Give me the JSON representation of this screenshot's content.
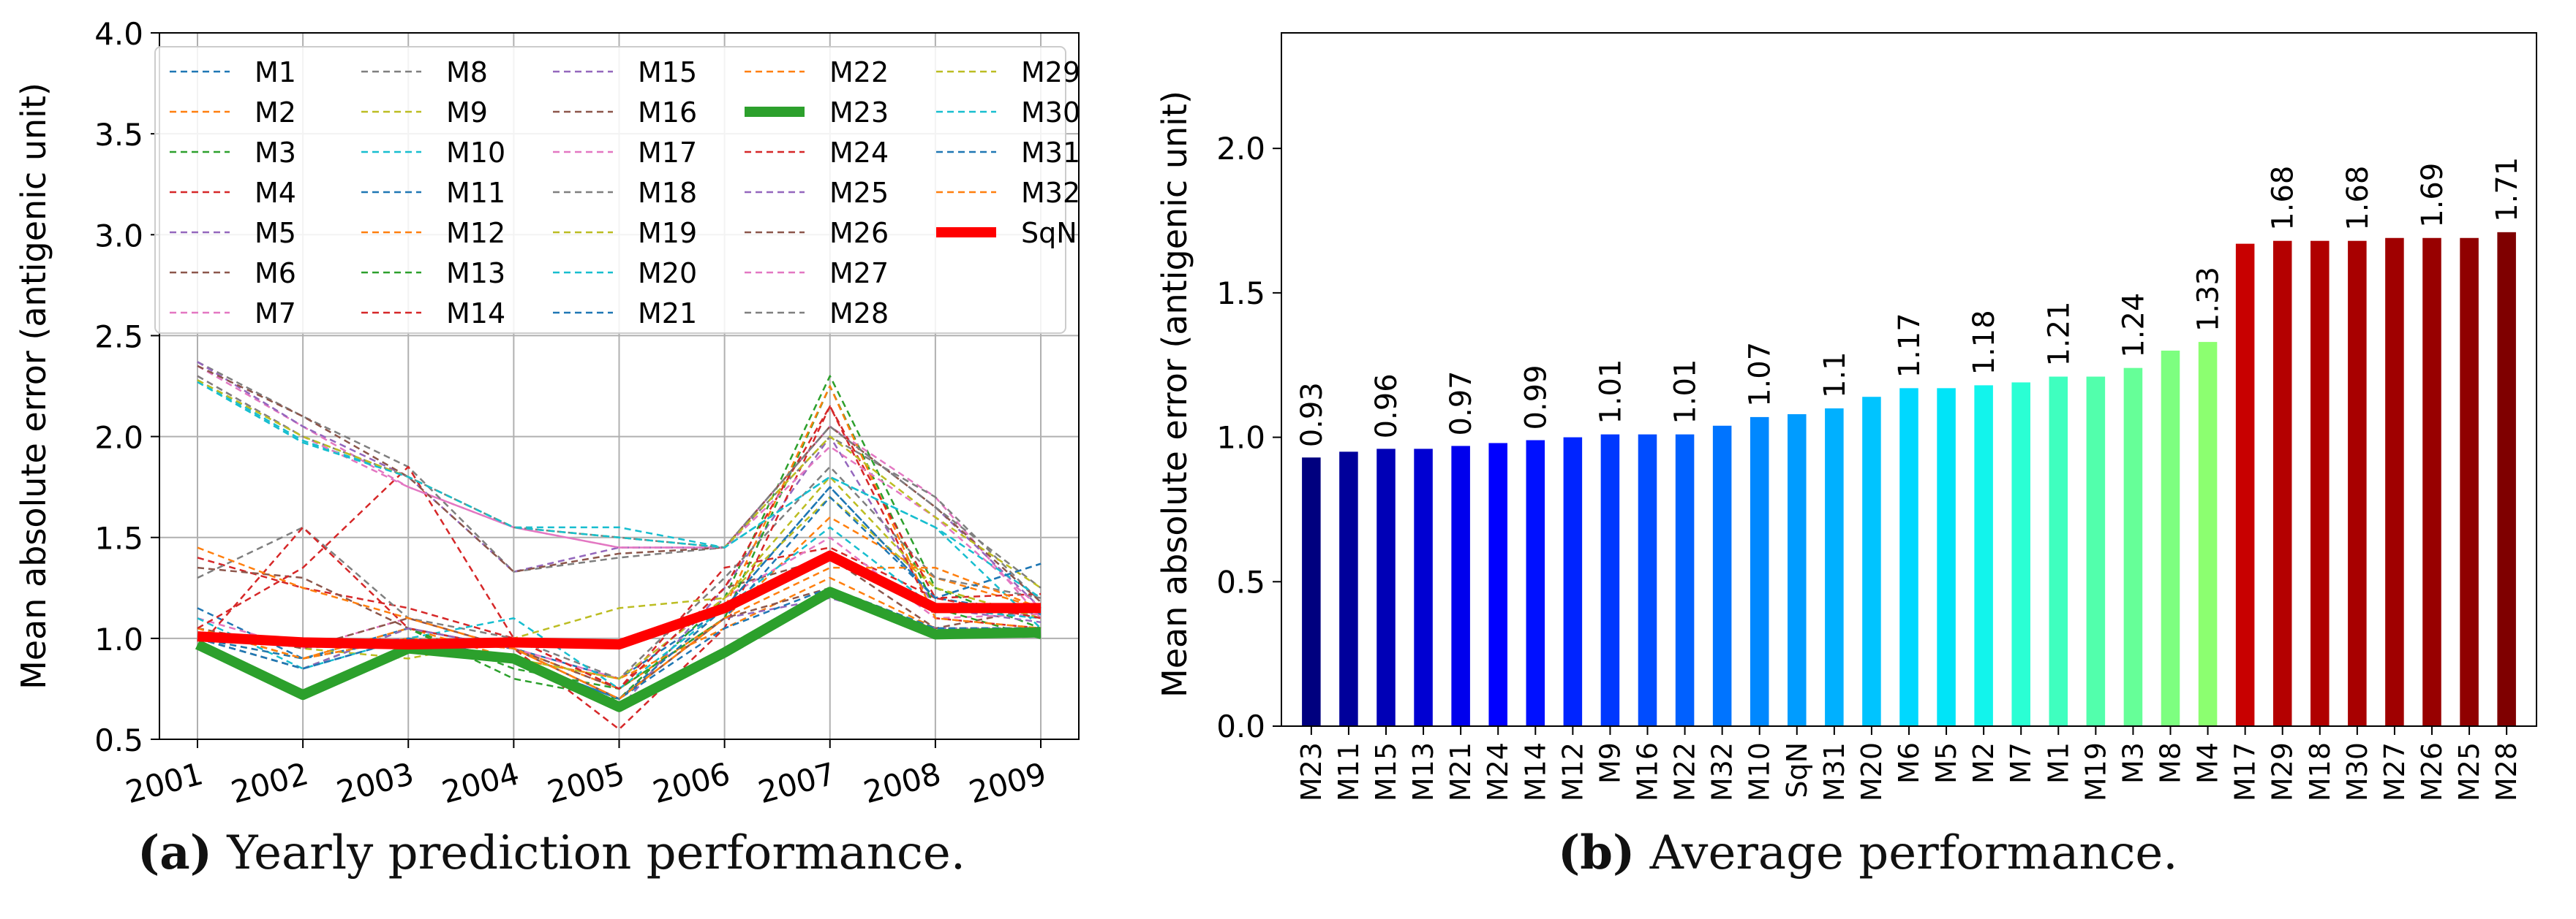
{
  "chart_data": [
    {
      "type": "line",
      "ylabel": "Mean absolute error (antigenic unit)",
      "x": [
        "2001",
        "2002",
        "2003",
        "2004",
        "2005",
        "2006",
        "2007",
        "2008",
        "2009"
      ],
      "ylim": [
        0.5,
        4.0
      ],
      "yticks": [
        "0.5",
        "1.0",
        "1.5",
        "2.0",
        "2.5",
        "3.0",
        "3.5",
        "4.0"
      ],
      "grid": true,
      "legend_position": "top",
      "caption": {
        "label": "(a)",
        "text": " Yearly prediction performance."
      },
      "series": [
        {
          "name": "M1",
          "color": "#1f77b4",
          "values": [
            1.15,
            0.9,
            1.05,
            0.95,
            0.8,
            1.15,
            1.75,
            1.2,
            1.12
          ]
        },
        {
          "name": "M2",
          "color": "#ff7f0e",
          "values": [
            1.05,
            0.9,
            1.0,
            0.95,
            0.75,
            1.1,
            1.6,
            1.3,
            1.15
          ]
        },
        {
          "name": "M3",
          "color": "#2ca02c",
          "values": [
            1.0,
            0.85,
            1.05,
            0.8,
            0.7,
            1.2,
            2.3,
            1.25,
            1.05
          ]
        },
        {
          "name": "M4",
          "color": "#d62728",
          "values": [
            1.4,
            1.25,
            1.15,
            1.0,
            0.75,
            1.35,
            1.45,
            1.2,
            1.22
          ]
        },
        {
          "name": "M5",
          "color": "#9467bd",
          "values": [
            1.05,
            0.95,
            1.0,
            0.9,
            0.65,
            1.25,
            2.0,
            1.15,
            1.08
          ]
        },
        {
          "name": "M6",
          "color": "#8c564b",
          "values": [
            1.35,
            1.3,
            1.05,
            0.95,
            0.75,
            1.25,
            1.4,
            1.05,
            1.15
          ]
        },
        {
          "name": "M7",
          "color": "#e377c2",
          "values": [
            1.1,
            0.95,
            1.1,
            0.95,
            0.8,
            1.2,
            1.5,
            1.1,
            1.12
          ]
        },
        {
          "name": "M8",
          "color": "#7f7f7f",
          "values": [
            1.3,
            1.55,
            1.1,
            1.0,
            0.8,
            1.3,
            1.85,
            1.3,
            1.2
          ]
        },
        {
          "name": "M9",
          "color": "#bcbd22",
          "values": [
            1.05,
            0.95,
            0.9,
            1.0,
            1.15,
            1.2,
            1.7,
            1.25,
            1.1
          ]
        },
        {
          "name": "M10",
          "color": "#17becf",
          "values": [
            1.1,
            0.85,
            1.0,
            1.1,
            0.75,
            1.15,
            1.55,
            1.15,
            1.1
          ]
        },
        {
          "name": "M11",
          "color": "#1f77b4",
          "values": [
            1.0,
            0.85,
            1.0,
            0.95,
            0.7,
            1.1,
            1.7,
            1.2,
            1.37
          ]
        },
        {
          "name": "M12",
          "color": "#ff7f0e",
          "values": [
            1.05,
            0.9,
            1.05,
            0.9,
            0.8,
            1.05,
            1.3,
            1.05,
            1.05
          ]
        },
        {
          "name": "M13",
          "color": "#2ca02c",
          "values": [
            1.0,
            0.85,
            1.05,
            0.85,
            0.75,
            1.1,
            2.25,
            1.15,
            1.0
          ]
        },
        {
          "name": "M14",
          "color": "#d62728",
          "values": [
            0.95,
            1.55,
            1.05,
            0.95,
            0.55,
            1.05,
            2.15,
            1.1,
            1.05
          ]
        },
        {
          "name": "M15",
          "color": "#9467bd",
          "values": [
            1.0,
            0.85,
            1.05,
            0.95,
            0.7,
            1.1,
            1.2,
            1.05,
            1.05
          ]
        },
        {
          "name": "M16",
          "color": "#8c564b",
          "values": [
            1.05,
            0.95,
            1.1,
            0.95,
            0.7,
            1.1,
            1.25,
            1.05,
            1.05
          ]
        },
        {
          "name": "M17",
          "color": "#e377c2",
          "values": [
            2.35,
            2.05,
            1.75,
            1.55,
            1.45,
            1.45,
            2.05,
            1.7,
            1.1
          ]
        },
        {
          "name": "M18",
          "color": "#7f7f7f",
          "values": [
            2.37,
            2.1,
            1.85,
            1.33,
            1.4,
            1.45,
            2.0,
            1.7,
            1.18
          ]
        },
        {
          "name": "M19",
          "color": "#bcbd22",
          "values": [
            1.0,
            0.9,
            1.0,
            0.9,
            0.8,
            1.2,
            1.8,
            1.25,
            1.1
          ]
        },
        {
          "name": "M20",
          "color": "#17becf",
          "values": [
            2.28,
            1.98,
            1.8,
            1.55,
            1.55,
            1.45,
            1.8,
            1.55,
            1.05
          ]
        },
        {
          "name": "M21",
          "color": "#1f77b4",
          "values": [
            1.0,
            0.9,
            1.0,
            0.9,
            0.7,
            1.05,
            1.25,
            1.05,
            1.05
          ]
        },
        {
          "name": "M22",
          "color": "#ff7f0e",
          "values": [
            1.05,
            0.9,
            1.0,
            0.95,
            0.7,
            1.15,
            2.25,
            1.1,
            1.05
          ]
        },
        {
          "name": "M23",
          "color": "#2ca02c",
          "values": [
            0.97,
            0.72,
            0.95,
            0.9,
            0.66,
            0.93,
            1.23,
            1.02,
            1.03
          ]
        },
        {
          "name": "M24",
          "color": "#d62728",
          "values": [
            1.05,
            1.35,
            1.85,
            1.0,
            0.75,
            1.25,
            2.15,
            1.2,
            1.1
          ]
        },
        {
          "name": "M25",
          "color": "#9467bd",
          "values": [
            2.37,
            2.05,
            1.8,
            1.33,
            1.45,
            1.45,
            2.05,
            1.65,
            1.15
          ]
        },
        {
          "name": "M26",
          "color": "#8c564b",
          "values": [
            2.35,
            2.1,
            1.8,
            1.33,
            1.42,
            1.45,
            2.05,
            1.65,
            1.18
          ]
        },
        {
          "name": "M27",
          "color": "#e377c2",
          "values": [
            2.3,
            2.0,
            1.75,
            1.55,
            1.45,
            1.45,
            1.95,
            1.6,
            1.15
          ]
        },
        {
          "name": "M28",
          "color": "#7f7f7f",
          "values": [
            2.3,
            2.0,
            1.8,
            1.55,
            1.5,
            1.45,
            2.05,
            1.65,
            1.25
          ]
        },
        {
          "name": "M29",
          "color": "#bcbd22",
          "values": [
            2.28,
            2.0,
            1.8,
            1.55,
            1.5,
            1.45,
            2.0,
            1.6,
            1.25
          ]
        },
        {
          "name": "M30",
          "color": "#17becf",
          "values": [
            2.27,
            1.97,
            1.8,
            1.55,
            1.5,
            1.45,
            1.8,
            1.55,
            1.2
          ]
        },
        {
          "name": "M31",
          "color": "#1f77b4",
          "values": [
            1.0,
            0.85,
            1.0,
            0.9,
            0.7,
            1.15,
            1.75,
            1.2,
            1.37
          ]
        },
        {
          "name": "M32",
          "color": "#ff7f0e",
          "values": [
            1.45,
            1.25,
            1.1,
            0.95,
            0.7,
            1.1,
            1.35,
            1.35,
            1.15
          ]
        },
        {
          "name": "SqN",
          "color": "#ff0000",
          "values": [
            1.01,
            0.98,
            0.97,
            0.98,
            0.97,
            1.15,
            1.41,
            1.15,
            1.15
          ]
        }
      ],
      "highlight_series": [
        "M23",
        "SqN"
      ]
    },
    {
      "type": "bar",
      "ylabel": "Mean absolute error (antigenic unit)",
      "ylim": [
        0.0,
        2.4
      ],
      "yticks": [
        "0.0",
        "0.5",
        "1.0",
        "1.5",
        "2.0"
      ],
      "grid": false,
      "caption": {
        "label": "(b)",
        "text": " Average performance."
      },
      "categories": [
        "M23",
        "M11",
        "M15",
        "M13",
        "M21",
        "M24",
        "M14",
        "M12",
        "M9",
        "M16",
        "M22",
        "M32",
        "M10",
        "SqN",
        "M31",
        "M20",
        "M6",
        "M5",
        "M2",
        "M7",
        "M1",
        "M19",
        "M3",
        "M8",
        "M4",
        "M17",
        "M29",
        "M18",
        "M30",
        "M27",
        "M26",
        "M25",
        "M28"
      ],
      "values": [
        0.93,
        0.95,
        0.96,
        0.96,
        0.97,
        0.98,
        0.99,
        1.0,
        1.01,
        1.01,
        1.01,
        1.04,
        1.07,
        1.08,
        1.1,
        1.14,
        1.17,
        1.17,
        1.18,
        1.19,
        1.21,
        1.21,
        1.24,
        1.3,
        1.33,
        1.67,
        1.68,
        1.68,
        1.68,
        1.69,
        1.69,
        1.69,
        1.71
      ],
      "value_labels": [
        "0.93",
        "",
        "0.96",
        "",
        "0.97",
        "",
        "0.99",
        "",
        "1.01",
        "",
        "1.01",
        "",
        "1.07",
        "",
        "1.1",
        "",
        "1.17",
        "",
        "1.18",
        "",
        "1.21",
        "",
        "1.24",
        "",
        "1.33",
        "",
        "1.68",
        "",
        "1.68",
        "",
        "1.69",
        "",
        "1.71"
      ],
      "colors": [
        "#00007f",
        "#00009b",
        "#0000b6",
        "#0000d2",
        "#0000ed",
        "#0000ff",
        "#0010ff",
        "#0024ff",
        "#0038ff",
        "#004cff",
        "#0060ff",
        "#0074ff",
        "#0088ff",
        "#009cff",
        "#00b0ff",
        "#00c4ff",
        "#00d8ff",
        "#00e4f8",
        "#12f4ec",
        "#2affd4",
        "#3fffbf",
        "#52ffac",
        "#66ff98",
        "#7dff80",
        "#8cff70",
        "#c80000",
        "#b40000",
        "#b00000",
        "#a80000",
        "#a00000",
        "#980000",
        "#900000",
        "#7f0000"
      ]
    }
  ]
}
